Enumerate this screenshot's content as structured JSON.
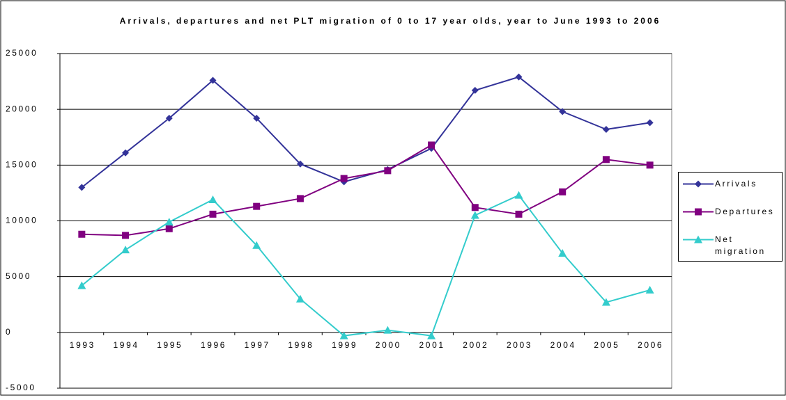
{
  "chart_data": {
    "type": "line",
    "title": "Arrivals, departures and net PLT migration of 0 to 17 year olds, year to June 1993 to 2006",
    "categories": [
      "1993",
      "1994",
      "1995",
      "1996",
      "1997",
      "1998",
      "1999",
      "2000",
      "2001",
      "2002",
      "2003",
      "2004",
      "2005",
      "2006"
    ],
    "series": [
      {
        "name": "Arrivals",
        "color": "#333399",
        "marker": "diamond",
        "values": [
          13000,
          16100,
          19200,
          22600,
          19200,
          15100,
          13500,
          14600,
          16500,
          21700,
          22900,
          19800,
          18200,
          18800
        ]
      },
      {
        "name": "Departures",
        "color": "#800080",
        "marker": "square",
        "values": [
          8800,
          8700,
          9300,
          10600,
          11300,
          12000,
          13800,
          14500,
          16800,
          11200,
          10600,
          12600,
          15500,
          15000
        ]
      },
      {
        "name": "Net migration",
        "color": "#33CCCC",
        "marker": "triangle",
        "values": [
          4200,
          7400,
          9900,
          11900,
          7800,
          3000,
          -300,
          200,
          -300,
          10500,
          12300,
          7100,
          2700,
          3800
        ]
      }
    ],
    "ylim": [
      -5000,
      25000
    ],
    "yticks": [
      -5000,
      0,
      5000,
      10000,
      15000,
      20000,
      25000
    ],
    "grid": true
  }
}
